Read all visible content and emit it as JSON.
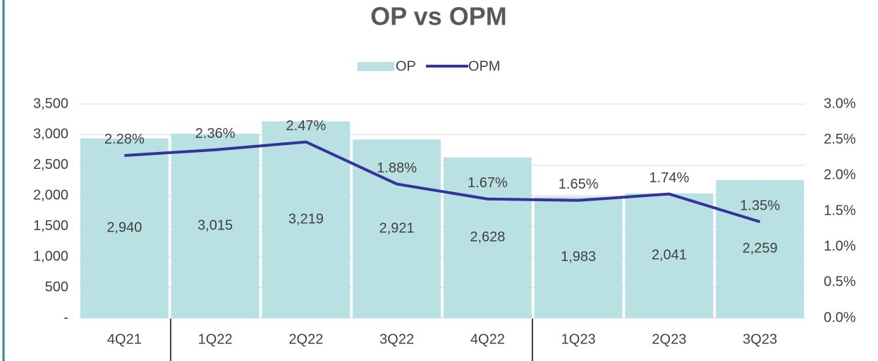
{
  "chart_data": {
    "type": "bar",
    "title": "OP vs OPM",
    "categories": [
      "4Q21",
      "1Q22",
      "2Q22",
      "3Q22",
      "4Q22",
      "1Q23",
      "2Q23",
      "3Q23"
    ],
    "series": [
      {
        "name": "OP",
        "type": "bar",
        "color": "#b9e0e3",
        "values": [
          2940,
          3015,
          3219,
          2921,
          2628,
          1983,
          2041,
          2259
        ],
        "value_labels": [
          "2,940",
          "3,015",
          "3,219",
          "2,921",
          "2,628",
          "1,983",
          "2,041",
          "2,259"
        ]
      },
      {
        "name": "OPM",
        "type": "line",
        "axis": "y2",
        "color": "#33339a",
        "values": [
          2.28,
          2.36,
          2.47,
          1.88,
          1.67,
          1.65,
          1.74,
          1.35
        ],
        "value_labels": [
          "2.28%",
          "2.36%",
          "2.47%",
          "1.88%",
          "1.67%",
          "1.65%",
          "1.74%",
          "1.35%"
        ]
      }
    ],
    "ylim": [
      0,
      3500
    ],
    "yticks": [
      {
        "value": 0,
        "label": "-"
      },
      500,
      {
        "value": 1000,
        "label": "1,000"
      },
      {
        "value": 1500,
        "label": "1,500"
      },
      {
        "value": 2000,
        "label": "2,000"
      },
      {
        "value": 2500,
        "label": "2,500"
      },
      {
        "value": 3000,
        "label": "3,000"
      },
      {
        "value": 3500,
        "label": "3,500"
      }
    ],
    "y2lim": [
      0,
      3
    ],
    "y2ticks": [
      {
        "value": 0,
        "label": "0.0%"
      },
      {
        "value": 0.5,
        "label": "0.5%"
      },
      {
        "value": 1,
        "label": "1.0%"
      },
      {
        "value": 1.5,
        "label": "1.5%"
      },
      {
        "value": 2,
        "label": "2.0%"
      },
      {
        "value": 2.5,
        "label": "2.5%"
      },
      {
        "value": 3,
        "label": "3.0%"
      }
    ],
    "grid": true,
    "legend": "top"
  }
}
